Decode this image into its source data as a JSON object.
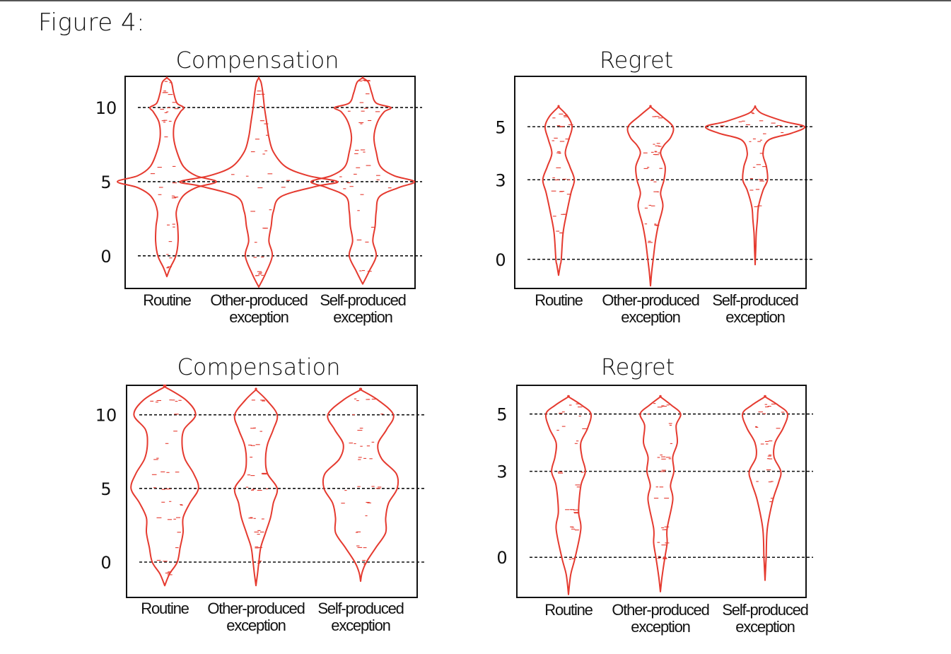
{
  "figure_title": "Figure 4:",
  "colors": {
    "violin": "#e53a2f",
    "axis": "#111111",
    "refline": "#111111"
  },
  "chart_data": [
    {
      "type": "violin",
      "title": "Compensation",
      "categories": [
        "Routine",
        "Other-produced exception",
        "Self-produced exception"
      ],
      "yticks": [
        0,
        5,
        10
      ],
      "ylim": [
        -2.2,
        12.1
      ],
      "reference_lines": [
        0,
        5,
        10
      ],
      "grid": false,
      "series": [
        {
          "profile": [
            [
              -1.4,
              0
            ],
            [
              -0.8,
              0.15
            ],
            [
              0,
              0.4
            ],
            [
              1,
              0.5
            ],
            [
              2,
              0.48
            ],
            [
              3,
              0.42
            ],
            [
              4,
              0.7
            ],
            [
              4.6,
              1.3
            ],
            [
              5,
              2.2
            ],
            [
              5.4,
              1.3
            ],
            [
              6,
              0.75
            ],
            [
              7,
              0.45
            ],
            [
              8,
              0.3
            ],
            [
              9,
              0.35
            ],
            [
              9.7,
              0.6
            ],
            [
              10,
              0.75
            ],
            [
              10.3,
              0.45
            ],
            [
              11,
              0.3
            ],
            [
              11.7,
              0.2
            ],
            [
              12,
              0
            ]
          ]
        },
        {
          "profile": [
            [
              -2.1,
              0
            ],
            [
              -1.2,
              0.3
            ],
            [
              0,
              0.6
            ],
            [
              1,
              0.45
            ],
            [
              2,
              0.55
            ],
            [
              3,
              0.65
            ],
            [
              4,
              1.0
            ],
            [
              4.7,
              2.6
            ],
            [
              5,
              3.5
            ],
            [
              5.4,
              2.2
            ],
            [
              6,
              1.2
            ],
            [
              7,
              0.65
            ],
            [
              8,
              0.45
            ],
            [
              9,
              0.35
            ],
            [
              10,
              0.25
            ],
            [
              11,
              0.18
            ],
            [
              11.7,
              0.1
            ],
            [
              12,
              0
            ]
          ]
        },
        {
          "profile": [
            [
              -1.9,
              0
            ],
            [
              -1,
              0.3
            ],
            [
              0,
              0.6
            ],
            [
              1,
              0.45
            ],
            [
              2,
              0.55
            ],
            [
              3,
              0.6
            ],
            [
              4,
              0.75
            ],
            [
              4.6,
              1.6
            ],
            [
              5,
              2.3
            ],
            [
              5.4,
              1.4
            ],
            [
              6,
              0.8
            ],
            [
              7,
              0.6
            ],
            [
              8,
              0.5
            ],
            [
              9,
              0.65
            ],
            [
              9.7,
              0.95
            ],
            [
              10,
              1.25
            ],
            [
              10.3,
              0.6
            ],
            [
              11,
              0.4
            ],
            [
              11.7,
              0.25
            ],
            [
              12,
              0
            ]
          ]
        }
      ]
    },
    {
      "type": "violin",
      "title": "Regret",
      "categories": [
        "Routine",
        "Other-produced exception",
        "Self-produced exception"
      ],
      "yticks": [
        0,
        3,
        5
      ],
      "ylim": [
        -1.1,
        6.9
      ],
      "reference_lines": [
        0,
        3,
        5
      ],
      "grid": false,
      "series": [
        {
          "profile": [
            [
              -0.6,
              0
            ],
            [
              -0.2,
              0.08
            ],
            [
              0,
              0.12
            ],
            [
              1,
              0.2
            ],
            [
              1.7,
              0.35
            ],
            [
              2.5,
              0.55
            ],
            [
              3,
              0.7
            ],
            [
              3.5,
              0.5
            ],
            [
              4,
              0.3
            ],
            [
              4.5,
              0.45
            ],
            [
              5,
              0.6
            ],
            [
              5.4,
              0.4
            ],
            [
              5.75,
              0
            ]
          ]
        },
        {
          "profile": [
            [
              -1.0,
              0
            ],
            [
              -0.5,
              0.05
            ],
            [
              0,
              0.12
            ],
            [
              0.7,
              0.22
            ],
            [
              1.3,
              0.35
            ],
            [
              2,
              0.55
            ],
            [
              2.5,
              0.45
            ],
            [
              3,
              0.6
            ],
            [
              3.5,
              0.65
            ],
            [
              4,
              0.45
            ],
            [
              4.3,
              0.6
            ],
            [
              4.6,
              0.9
            ],
            [
              5,
              1.0
            ],
            [
              5.4,
              0.5
            ],
            [
              5.75,
              0
            ]
          ]
        },
        {
          "profile": [
            [
              -0.2,
              0
            ],
            [
              0.5,
              0.03
            ],
            [
              1,
              0.05
            ],
            [
              1.5,
              0.1
            ],
            [
              2,
              0.15
            ],
            [
              2.6,
              0.35
            ],
            [
              3,
              0.55
            ],
            [
              3.5,
              0.5
            ],
            [
              4,
              0.35
            ],
            [
              4.5,
              0.6
            ],
            [
              4.75,
              1.6
            ],
            [
              5,
              2.2
            ],
            [
              5.2,
              1.3
            ],
            [
              5.5,
              0.3
            ],
            [
              5.75,
              0
            ]
          ]
        }
      ]
    },
    {
      "type": "violin",
      "title": "Compensation",
      "categories": [
        "Routine",
        "Other-produced exception",
        "Self-produced exception"
      ],
      "yticks": [
        0,
        5,
        10
      ],
      "ylim": [
        -2.4,
        12
      ],
      "reference_lines": [
        0,
        5,
        10
      ],
      "grid": false,
      "series": [
        {
          "profile": [
            [
              -1.6,
              0
            ],
            [
              -0.8,
              0.25
            ],
            [
              0,
              0.65
            ],
            [
              1,
              0.8
            ],
            [
              2,
              0.95
            ],
            [
              3,
              0.95
            ],
            [
              4,
              1.3
            ],
            [
              5,
              1.75
            ],
            [
              6,
              1.5
            ],
            [
              7,
              1.05
            ],
            [
              8,
              0.9
            ],
            [
              9,
              1.0
            ],
            [
              10,
              1.6
            ],
            [
              11,
              1.1
            ],
            [
              11.9,
              0
            ]
          ]
        },
        {
          "profile": [
            [
              -1.6,
              0
            ],
            [
              -0.8,
              0.08
            ],
            [
              0,
              0.15
            ],
            [
              1,
              0.25
            ],
            [
              2,
              0.5
            ],
            [
              3,
              0.75
            ],
            [
              4,
              0.9
            ],
            [
              5,
              1.1
            ],
            [
              6,
              0.6
            ],
            [
              7,
              0.5
            ],
            [
              8,
              0.6
            ],
            [
              9,
              0.9
            ],
            [
              10,
              1.1
            ],
            [
              11,
              0.55
            ],
            [
              11.7,
              0
            ]
          ]
        },
        {
          "profile": [
            [
              -1.3,
              0
            ],
            [
              -0.7,
              0.08
            ],
            [
              0,
              0.3
            ],
            [
              1,
              0.8
            ],
            [
              2,
              1.3
            ],
            [
              3,
              1.3
            ],
            [
              4,
              1.45
            ],
            [
              5,
              1.9
            ],
            [
              6,
              1.85
            ],
            [
              7,
              1.1
            ],
            [
              8,
              0.9
            ],
            [
              9,
              1.35
            ],
            [
              10,
              1.7
            ],
            [
              11,
              0.9
            ],
            [
              11.7,
              0
            ]
          ]
        }
      ]
    },
    {
      "type": "violin",
      "title": "Regret",
      "categories": [
        "Routine",
        "Other-produced exception",
        "Self-produced exception"
      ],
      "yticks": [
        0,
        3,
        5
      ],
      "ylim": [
        -1.4,
        6.0
      ],
      "reference_lines": [
        0,
        3,
        5
      ],
      "grid": false,
      "series": [
        {
          "profile": [
            [
              -1.3,
              0
            ],
            [
              -0.6,
              0.1
            ],
            [
              0,
              0.3
            ],
            [
              1,
              0.55
            ],
            [
              1.6,
              0.45
            ],
            [
              2.5,
              0.55
            ],
            [
              3,
              0.75
            ],
            [
              3.5,
              0.6
            ],
            [
              4,
              0.55
            ],
            [
              4.5,
              0.85
            ],
            [
              5,
              1.0
            ],
            [
              5.3,
              0.6
            ],
            [
              5.6,
              0
            ]
          ]
        },
        {
          "profile": [
            [
              -1.2,
              0
            ],
            [
              -0.7,
              0.07
            ],
            [
              0,
              0.2
            ],
            [
              0.5,
              0.3
            ],
            [
              1,
              0.3
            ],
            [
              2,
              0.55
            ],
            [
              2.5,
              0.45
            ],
            [
              3,
              0.6
            ],
            [
              3.5,
              0.55
            ],
            [
              4,
              0.75
            ],
            [
              4.6,
              0.7
            ],
            [
              5,
              0.9
            ],
            [
              5.3,
              0.5
            ],
            [
              5.6,
              0
            ]
          ]
        },
        {
          "profile": [
            [
              -0.8,
              0
            ],
            [
              -0.3,
              0.03
            ],
            [
              0,
              0.05
            ],
            [
              1,
              0.1
            ],
            [
              2,
              0.35
            ],
            [
              2.6,
              0.6
            ],
            [
              3,
              0.7
            ],
            [
              3.5,
              0.4
            ],
            [
              4,
              0.45
            ],
            [
              4.5,
              0.8
            ],
            [
              5,
              1.0
            ],
            [
              5.3,
              0.6
            ],
            [
              5.6,
              0
            ]
          ]
        }
      ]
    }
  ]
}
